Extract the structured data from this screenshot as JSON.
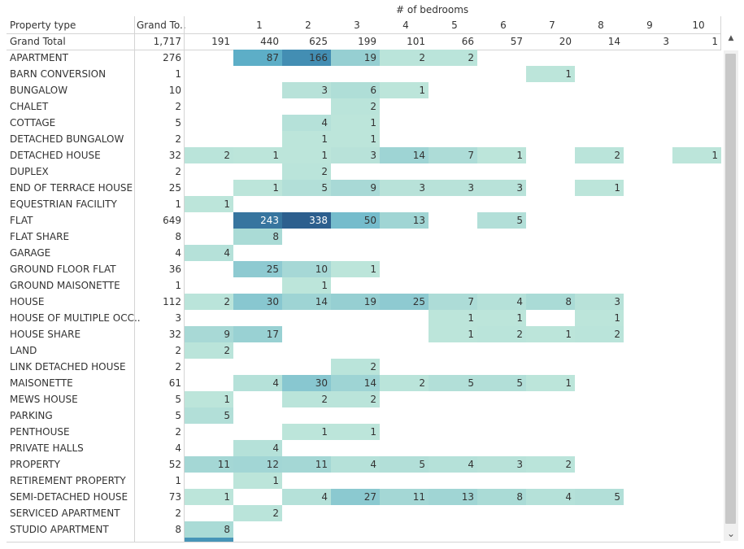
{
  "header": {
    "row_dim_label": "Property type",
    "total_col_label": "Grand To..",
    "col_dim_label": "# of bedrooms",
    "grand_total_label": "Grand Total"
  },
  "chart_data": {
    "type": "heatmap",
    "title": "",
    "columns": [
      "",
      "1",
      "2",
      "3",
      "4",
      "5",
      "6",
      "7",
      "8",
      "9",
      "10"
    ],
    "column_totals": [
      191,
      440,
      625,
      199,
      101,
      66,
      57,
      20,
      14,
      3,
      1
    ],
    "grand_total": "1,717",
    "rows": [
      {
        "label": "APARTMENT",
        "total": 276,
        "values": [
          null,
          87,
          166,
          19,
          2,
          2,
          null,
          null,
          null,
          null,
          null
        ]
      },
      {
        "label": "BARN CONVERSION",
        "total": 1,
        "values": [
          null,
          null,
          null,
          null,
          null,
          null,
          null,
          1,
          null,
          null,
          null
        ]
      },
      {
        "label": "BUNGALOW",
        "total": 10,
        "values": [
          null,
          null,
          3,
          6,
          1,
          null,
          null,
          null,
          null,
          null,
          null
        ]
      },
      {
        "label": "CHALET",
        "total": 2,
        "values": [
          null,
          null,
          null,
          2,
          null,
          null,
          null,
          null,
          null,
          null,
          null
        ]
      },
      {
        "label": "COTTAGE",
        "total": 5,
        "values": [
          null,
          null,
          4,
          1,
          null,
          null,
          null,
          null,
          null,
          null,
          null
        ]
      },
      {
        "label": "DETACHED BUNGALOW",
        "total": 2,
        "values": [
          null,
          null,
          1,
          1,
          null,
          null,
          null,
          null,
          null,
          null,
          null
        ]
      },
      {
        "label": "DETACHED HOUSE",
        "total": 32,
        "values": [
          2,
          1,
          1,
          3,
          14,
          7,
          1,
          null,
          2,
          null,
          1
        ]
      },
      {
        "label": "DUPLEX",
        "total": 2,
        "values": [
          null,
          null,
          2,
          null,
          null,
          null,
          null,
          null,
          null,
          null,
          null
        ]
      },
      {
        "label": "END OF TERRACE HOUSE",
        "total": 25,
        "values": [
          null,
          1,
          5,
          9,
          3,
          3,
          3,
          null,
          1,
          null,
          null
        ]
      },
      {
        "label": "EQUESTRIAN FACILITY",
        "total": 1,
        "values": [
          1,
          null,
          null,
          null,
          null,
          null,
          null,
          null,
          null,
          null,
          null
        ]
      },
      {
        "label": "FLAT",
        "total": 649,
        "values": [
          null,
          243,
          338,
          50,
          13,
          null,
          5,
          null,
          null,
          null,
          null
        ]
      },
      {
        "label": "FLAT SHARE",
        "total": 8,
        "values": [
          null,
          8,
          null,
          null,
          null,
          null,
          null,
          null,
          null,
          null,
          null
        ]
      },
      {
        "label": "GARAGE",
        "total": 4,
        "values": [
          4,
          null,
          null,
          null,
          null,
          null,
          null,
          null,
          null,
          null,
          null
        ]
      },
      {
        "label": "GROUND FLOOR FLAT",
        "total": 36,
        "values": [
          null,
          25,
          10,
          1,
          null,
          null,
          null,
          null,
          null,
          null,
          null
        ]
      },
      {
        "label": "GROUND MAISONETTE",
        "total": 1,
        "values": [
          null,
          null,
          1,
          null,
          null,
          null,
          null,
          null,
          null,
          null,
          null
        ]
      },
      {
        "label": "HOUSE",
        "total": 112,
        "values": [
          2,
          30,
          14,
          19,
          25,
          7,
          4,
          8,
          3,
          null,
          null
        ]
      },
      {
        "label": "HOUSE OF MULTIPLE OCC..",
        "total": 3,
        "values": [
          null,
          null,
          null,
          null,
          null,
          1,
          1,
          null,
          1,
          null,
          null
        ]
      },
      {
        "label": "HOUSE SHARE",
        "total": 32,
        "values": [
          9,
          17,
          null,
          null,
          null,
          1,
          2,
          1,
          2,
          null,
          null
        ]
      },
      {
        "label": "LAND",
        "total": 2,
        "values": [
          2,
          null,
          null,
          null,
          null,
          null,
          null,
          null,
          null,
          null,
          null
        ]
      },
      {
        "label": "LINK DETACHED HOUSE",
        "total": 2,
        "values": [
          null,
          null,
          null,
          2,
          null,
          null,
          null,
          null,
          null,
          null,
          null
        ]
      },
      {
        "label": "MAISONETTE",
        "total": 61,
        "values": [
          null,
          4,
          30,
          14,
          2,
          5,
          5,
          1,
          null,
          null,
          null
        ]
      },
      {
        "label": "MEWS HOUSE",
        "total": 5,
        "values": [
          1,
          null,
          2,
          2,
          null,
          null,
          null,
          null,
          null,
          null,
          null
        ]
      },
      {
        "label": "PARKING",
        "total": 5,
        "values": [
          5,
          null,
          null,
          null,
          null,
          null,
          null,
          null,
          null,
          null,
          null
        ]
      },
      {
        "label": "PENTHOUSE",
        "total": 2,
        "values": [
          null,
          null,
          1,
          1,
          null,
          null,
          null,
          null,
          null,
          null,
          null
        ]
      },
      {
        "label": "PRIVATE HALLS",
        "total": 4,
        "values": [
          null,
          4,
          null,
          null,
          null,
          null,
          null,
          null,
          null,
          null,
          null
        ]
      },
      {
        "label": "PROPERTY",
        "total": 52,
        "values": [
          11,
          12,
          11,
          4,
          5,
          4,
          3,
          2,
          null,
          null,
          null
        ]
      },
      {
        "label": "RETIREMENT PROPERTY",
        "total": 1,
        "values": [
          null,
          1,
          null,
          null,
          null,
          null,
          null,
          null,
          null,
          null,
          null
        ]
      },
      {
        "label": "SEMI-DETACHED HOUSE",
        "total": 73,
        "values": [
          1,
          null,
          4,
          27,
          11,
          13,
          8,
          4,
          5,
          null,
          null
        ]
      },
      {
        "label": "SERVICED APARTMENT",
        "total": 2,
        "values": [
          null,
          2,
          null,
          null,
          null,
          null,
          null,
          null,
          null,
          null,
          null
        ]
      },
      {
        "label": "STUDIO APARTMENT",
        "total": 8,
        "values": [
          8,
          null,
          null,
          null,
          null,
          null,
          null,
          null,
          null,
          null,
          null
        ]
      }
    ],
    "color_scale": {
      "low": "#bce5da",
      "mid": "#4ea5c4",
      "high": "#2d5f8e"
    }
  },
  "scrollbar": {
    "up_icon": "▲",
    "down_icon": "⌄"
  }
}
